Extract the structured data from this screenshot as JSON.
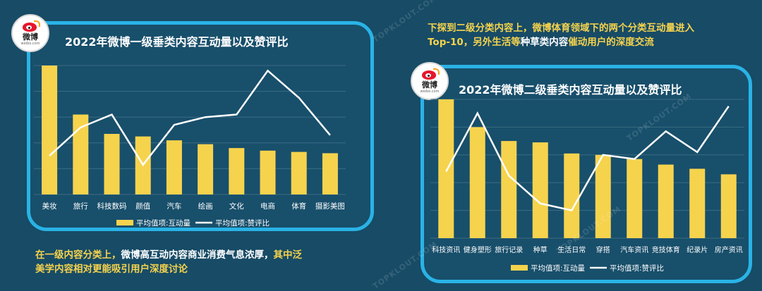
{
  "chart_data": [
    {
      "type": "bar",
      "title": "2022年微博一级垂类内容互动量以及赞评比",
      "categories": [
        "美妆",
        "旅行",
        "科技数码",
        "颜值",
        "汽车",
        "绘画",
        "文化",
        "电商",
        "体育",
        "摄影美图"
      ],
      "series": [
        {
          "name": "平均值项:互动量",
          "type": "bar",
          "values": [
            100,
            62,
            47,
            45,
            42,
            39,
            36,
            34,
            33,
            32
          ]
        },
        {
          "name": "平均值项:赞评比",
          "type": "line",
          "values": [
            30,
            52,
            62,
            23,
            54,
            60,
            62,
            96,
            75,
            46
          ]
        }
      ],
      "ylim": [
        0,
        100
      ],
      "legend_position": "bottom",
      "colors": {
        "bar": "#f6d34d",
        "line": "#ffffff",
        "grid": "#3b6b82"
      }
    },
    {
      "type": "bar",
      "title": "2022年微博二级垂类内容互动量以及赞评比",
      "categories": [
        "科技资讯",
        "健身塑形",
        "旅行记录",
        "种草",
        "生活日常",
        "穿搭",
        "汽车资讯",
        "竞技体育",
        "纪录片",
        "房产资讯"
      ],
      "series": [
        {
          "name": "平均值项:互动量",
          "type": "bar",
          "values": [
            100,
            80,
            70,
            69,
            61,
            60,
            57,
            53,
            50,
            46
          ]
        },
        {
          "name": "平均值项:赞评比",
          "type": "line",
          "values": [
            48,
            90,
            45,
            25,
            20,
            60,
            57,
            77,
            62,
            95
          ]
        }
      ],
      "ylim": [
        0,
        100
      ],
      "legend_position": "bottom",
      "colors": {
        "bar": "#f6d34d",
        "line": "#ffffff",
        "grid": "#3b6b82"
      }
    }
  ],
  "brand": {
    "name": "微博",
    "domain": "weibo.com"
  },
  "watermark": "TOPKLOUT.COM",
  "captions": {
    "left": {
      "line1": [
        {
          "text": "在一级内容分类上，",
          "color": "y"
        },
        {
          "text": "微博高互动内容商业消费气息浓厚，",
          "color": "w"
        },
        {
          "text": "其中泛",
          "color": "y"
        }
      ],
      "line2": [
        {
          "text": "美学内容相对更能吸引用户深度讨论",
          "color": "y"
        }
      ]
    },
    "right": {
      "line1": [
        {
          "text": "下探到二级分类内容上，微博体育领域下的两个分类互动量进入",
          "color": "y"
        }
      ],
      "line2": [
        {
          "text": "Top-10，另外生活等",
          "color": "y"
        },
        {
          "text": "种草类内容",
          "color": "w"
        },
        {
          "text": "催动用户的深度交流",
          "color": "y"
        }
      ]
    }
  }
}
